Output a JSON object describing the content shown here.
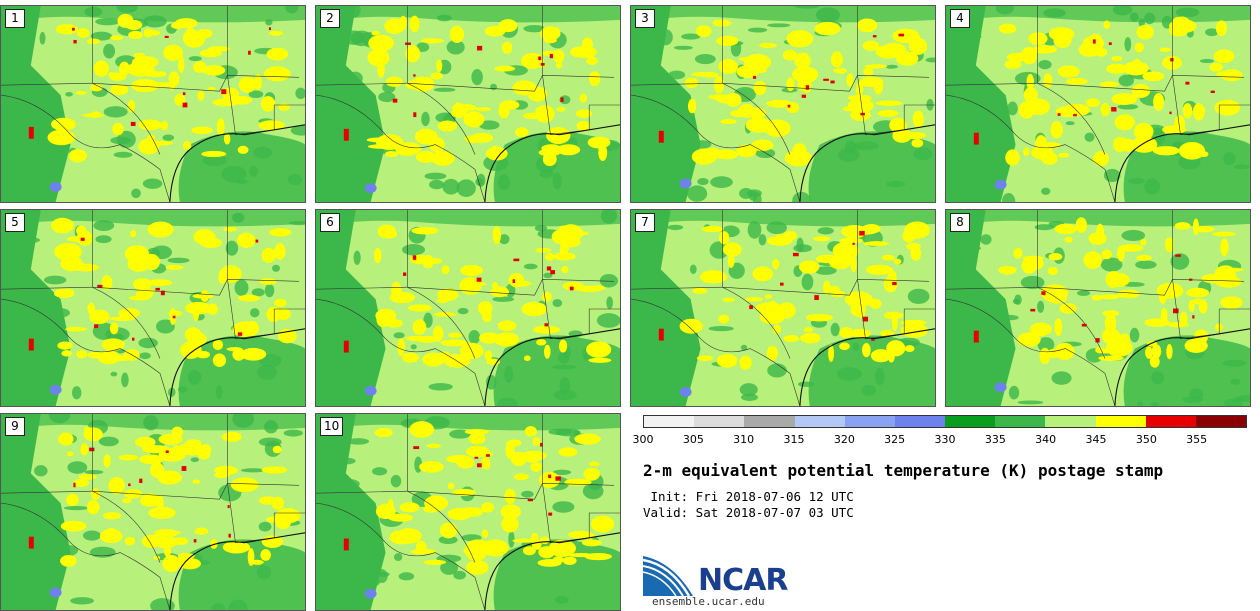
{
  "panels": [
    {
      "label": "1"
    },
    {
      "label": "2"
    },
    {
      "label": "3"
    },
    {
      "label": "4"
    },
    {
      "label": "5"
    },
    {
      "label": "6"
    },
    {
      "label": "7"
    },
    {
      "label": "8"
    },
    {
      "label": "9"
    },
    {
      "label": "10"
    }
  ],
  "colorbar": {
    "colors": [
      "#f2f2f2",
      "#dcdcdc",
      "#a9a9a9",
      "#b4c8f5",
      "#8aa2f2",
      "#6e82ee",
      "#0a9e1e",
      "#3cb84a",
      "#b7f07a",
      "#ffff00",
      "#e60000",
      "#8b0000"
    ],
    "ticks": [
      "300",
      "305",
      "310",
      "315",
      "320",
      "325",
      "330",
      "335",
      "340",
      "345",
      "350",
      "355"
    ]
  },
  "map_colors": {
    "background": "#b7f07a",
    "dark_green": "#3cb84a",
    "yellow": "#ffff00",
    "red": "#e60000",
    "blue": "#6e82ee"
  },
  "title": "2-m equivalent potential temperature (K) postage stamp",
  "init": " Init: Fri 2018-07-06 12 UTC",
  "valid": "Valid: Sat 2018-07-07 03 UTC",
  "logo": {
    "name": "NCAR",
    "url": "ensemble.ucar.edu"
  }
}
